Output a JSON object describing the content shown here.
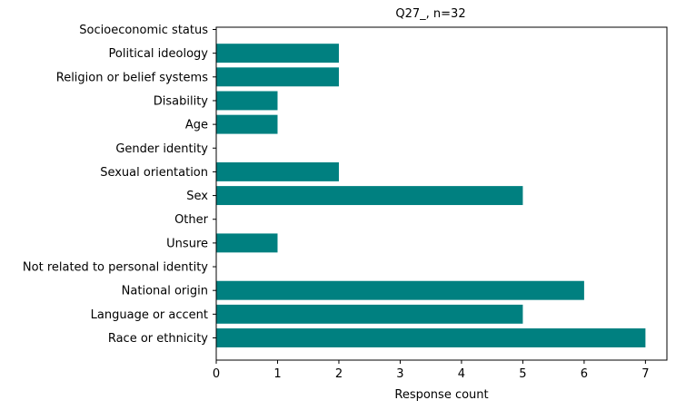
{
  "chart_data": {
    "type": "bar",
    "orientation": "horizontal",
    "title": "Q27_, n=32",
    "xlabel": "Response count",
    "ylabel": "",
    "xlim": [
      0,
      7.35
    ],
    "xticks": [
      "0",
      "1",
      "2",
      "3",
      "4",
      "5",
      "6",
      "7"
    ],
    "grid": false,
    "legend": "none",
    "bar_color": "#008080",
    "categories": [
      "Race or ethnicity",
      "Language or accent",
      "National origin",
      "Not related to personal identity",
      "Unsure",
      "Other",
      "Sex",
      "Sexual orientation",
      "Gender identity",
      "Age",
      "Disability",
      "Religion or belief systems",
      "Political ideology",
      "Socioeconomic status"
    ],
    "values": [
      7,
      5,
      6,
      0,
      1,
      0,
      5,
      2,
      0,
      1,
      1,
      2,
      2,
      0
    ]
  }
}
